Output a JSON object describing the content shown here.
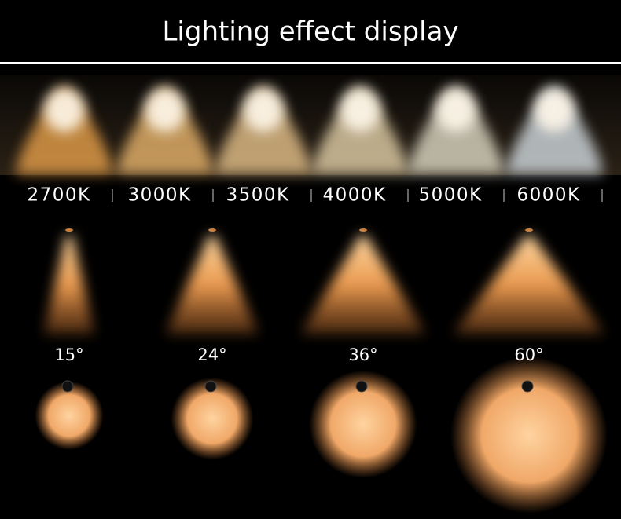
{
  "header": {
    "title": "Lighting effect display"
  },
  "color_temperatures": [
    "2700K",
    "3000K",
    "3500K",
    "4000K",
    "5000K",
    "6000K"
  ],
  "beam_angles": [
    "15°",
    "24°",
    "36°",
    "60°"
  ]
}
